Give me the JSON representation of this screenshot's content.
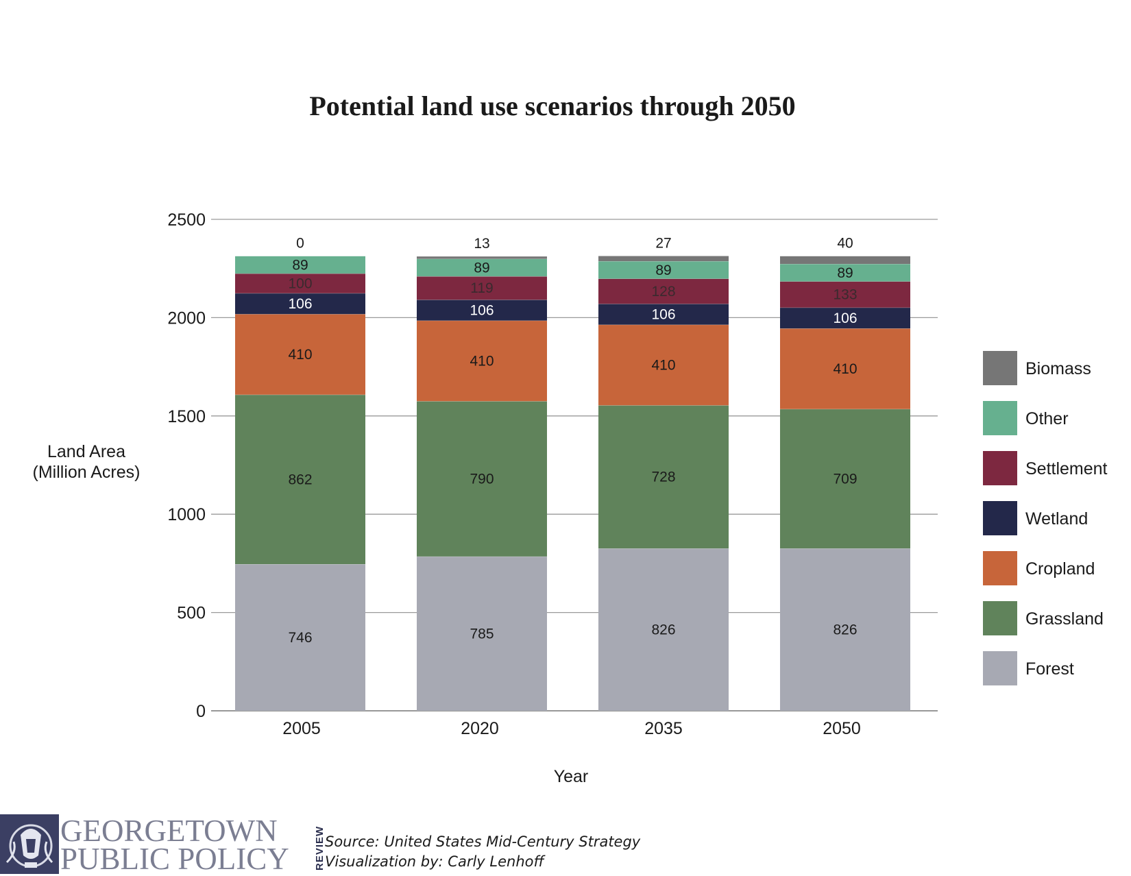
{
  "chart_data": {
    "type": "bar",
    "stacked": true,
    "title": "Potential land use scenarios through 2050",
    "xlabel": "Year",
    "ylabel": [
      "Land Area",
      "(Million Acres)"
    ],
    "ylim": [
      0,
      2500
    ],
    "yticks": [
      0,
      500,
      1000,
      1500,
      2000,
      2500
    ],
    "grid": true,
    "legend_position": "right",
    "categories": [
      "2005",
      "2020",
      "2035",
      "2050"
    ],
    "series": [
      {
        "name": "Forest",
        "color": "#a7a9b3",
        "label_color": "#1a1a1a",
        "values": [
          746,
          785,
          826,
          826
        ]
      },
      {
        "name": "Grassland",
        "color": "#60835b",
        "label_color": "#1a1a1a",
        "values": [
          862,
          790,
          728,
          709
        ]
      },
      {
        "name": "Cropland",
        "color": "#c7653a",
        "label_color": "#1a1a1a",
        "values": [
          410,
          410,
          410,
          410
        ]
      },
      {
        "name": "Wetland",
        "color": "#23284a",
        "label_color": "#ffffff",
        "values": [
          106,
          106,
          106,
          106
        ]
      },
      {
        "name": "Settlement",
        "color": "#7d2840",
        "label_color": "#3a2a2e",
        "values": [
          100,
          119,
          128,
          133
        ]
      },
      {
        "name": "Other",
        "color": "#66b08f",
        "label_color": "#1a1a1a",
        "values": [
          89,
          89,
          89,
          89
        ]
      },
      {
        "name": "Biomass",
        "color": "#767676",
        "label_color": "#1a1a1a",
        "values": [
          0,
          13,
          27,
          40
        ]
      }
    ],
    "legend_order": [
      "Biomass",
      "Other",
      "Settlement",
      "Wetland",
      "Cropland",
      "Grassland",
      "Forest"
    ]
  },
  "footer": {
    "logo_line1": "GEORGETOWN",
    "logo_line2": "PUBLIC POLICY",
    "logo_review": "REVIEW",
    "source": "Source: United States Mid-Century Strategy",
    "credit": "Visualization by: Carly Lenhoff"
  }
}
